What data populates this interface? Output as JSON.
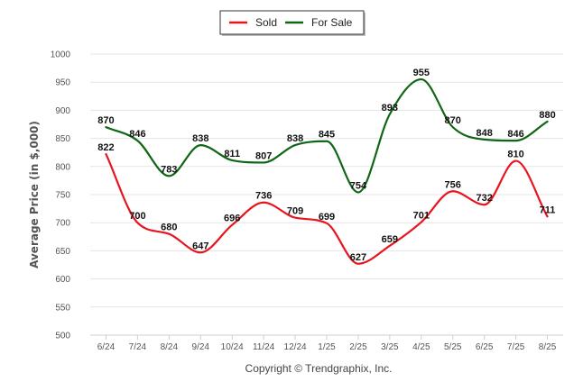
{
  "chart_data": {
    "type": "line",
    "categories": [
      "6/24",
      "7/24",
      "8/24",
      "9/24",
      "10/24",
      "11/24",
      "12/24",
      "1/25",
      "2/25",
      "3/25",
      "4/25",
      "5/25",
      "6/25",
      "7/25",
      "8/25"
    ],
    "series": [
      {
        "name": "Sold",
        "color": "#e8141e",
        "values": [
          822,
          700,
          680,
          647,
          696,
          736,
          709,
          699,
          627,
          659,
          701,
          756,
          732,
          810,
          711
        ]
      },
      {
        "name": "For Sale",
        "color": "#0f6614",
        "values": [
          870,
          846,
          783,
          838,
          811,
          807,
          838,
          845,
          754,
          893,
          955,
          870,
          848,
          846,
          880
        ]
      }
    ],
    "ylabel": "Average Price (in $,000)",
    "ylim": [
      500,
      1000
    ],
    "yticks": [
      500,
      550,
      600,
      650,
      700,
      750,
      800,
      850,
      900,
      950,
      1000
    ],
    "grid": true,
    "legend_position": "top-center",
    "smooth": true
  },
  "footer": {
    "credit": "Copyright © Trendgraphix, Inc."
  }
}
